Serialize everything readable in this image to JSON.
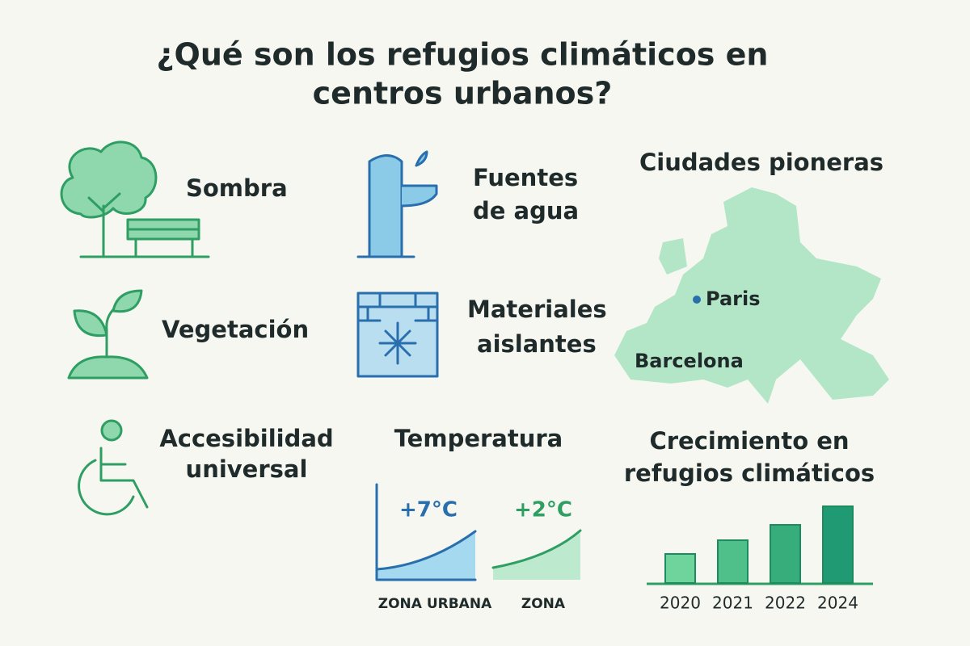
{
  "title": [
    "¿Qué son los refugios climáticos en",
    "centros urbanos?"
  ],
  "features": [
    {
      "lines": [
        "Sombra"
      ]
    },
    {
      "lines": [
        "Fuentes",
        "de agua"
      ]
    },
    {
      "lines": [
        "Vegetación"
      ]
    },
    {
      "lines": [
        "Materiales",
        "aislantes"
      ]
    },
    {
      "lines": [
        "Accesibilidad",
        "universal"
      ]
    }
  ],
  "map": {
    "title": "Ciudades pioneras",
    "cities": [
      "Paris",
      "Barcelona"
    ]
  },
  "temperature": {
    "title": "Temperatura",
    "series": [
      {
        "name": "ZONA URBANA",
        "label": "+7°C",
        "color": "#2a6fad"
      },
      {
        "name": "ZONA",
        "label": "+2°C",
        "color": "#2e9e63"
      }
    ]
  },
  "growth_chart": {
    "type": "bar",
    "title": [
      "Crecimiento en",
      "refugios climáticos"
    ],
    "categories": [
      "2020",
      "2021",
      "2022",
      "2024"
    ],
    "values": [
      36,
      53,
      72,
      95
    ],
    "colors": [
      "#6fd39c",
      "#4fc08a",
      "#37ad7c",
      "#1f9a72"
    ]
  }
}
